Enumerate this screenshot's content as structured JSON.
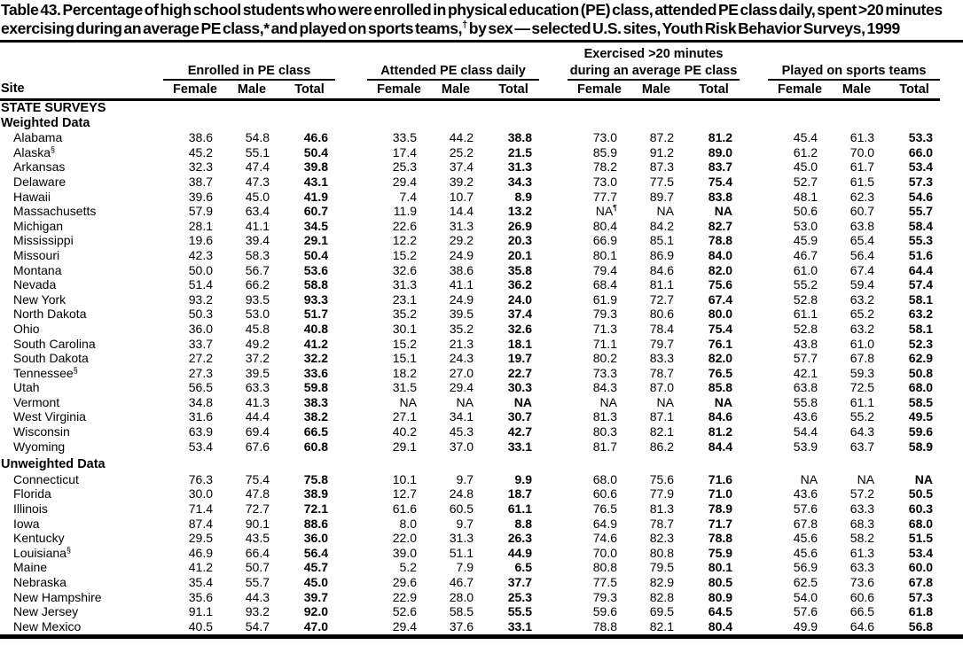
{
  "title_parts": [
    {
      "text": "Table 43. Percentage of high school students who were enrolled in physical education (PE) class, attended PE class daily, spent >20 minutes exercising during an average PE class,* and played on sports teams,"
    },
    {
      "sup": "†"
    },
    {
      "text": " by sex — selected U.S. sites, Youth Risk Behavior Surveys, 1999"
    }
  ],
  "table": {
    "site_header": "Site",
    "groups": [
      {
        "line1": "",
        "line2": "Enrolled in PE class"
      },
      {
        "line1": "",
        "line2": "Attended PE class daily"
      },
      {
        "line1": "Exercised >20 minutes",
        "line2": "during an average PE class"
      },
      {
        "line1": "",
        "line2": "Played on sports teams"
      }
    ],
    "sub_headers": [
      "Female",
      "Male",
      "Total"
    ],
    "sections": [
      {
        "label": "STATE SURVEYS",
        "gap": false,
        "rows": []
      },
      {
        "label": "Weighted Data",
        "gap": false,
        "rows": [
          {
            "site": "Alabama",
            "site_sup": "",
            "values": [
              "38.6",
              "54.8",
              "46.6",
              "33.5",
              "44.2",
              "38.8",
              "73.0",
              "87.2",
              "81.2",
              "45.4",
              "61.3",
              "53.3"
            ]
          },
          {
            "site": "Alaska",
            "site_sup": "§",
            "values": [
              "45.2",
              "55.1",
              "50.4",
              "17.4",
              "25.2",
              "21.5",
              "85.9",
              "91.2",
              "89.0",
              "61.2",
              "70.0",
              "66.0"
            ]
          },
          {
            "site": "Arkansas",
            "site_sup": "",
            "values": [
              "32.3",
              "47.4",
              "39.8",
              "25.3",
              "37.4",
              "31.3",
              "78.2",
              "87.3",
              "83.7",
              "45.0",
              "61.7",
              "53.4"
            ]
          },
          {
            "site": "Delaware",
            "site_sup": "",
            "values": [
              "38.7",
              "47.3",
              "43.1",
              "29.4",
              "39.2",
              "34.3",
              "73.0",
              "77.5",
              "75.4",
              "52.7",
              "61.5",
              "57.3"
            ]
          },
          {
            "site": "Hawaii",
            "site_sup": "",
            "values": [
              "39.6",
              "45.0",
              "41.9",
              "7.4",
              "10.7",
              "8.9",
              "77.7",
              "89.7",
              "83.8",
              "48.1",
              "62.3",
              "54.6"
            ]
          },
          {
            "site": "Massachusetts",
            "site_sup": "",
            "values": [
              "57.9",
              "63.4",
              "60.7",
              "11.9",
              "14.4",
              "13.2",
              "NA^¶",
              "NA",
              "NA",
              "50.6",
              "60.7",
              "55.7"
            ]
          },
          {
            "site": "Michigan",
            "site_sup": "",
            "values": [
              "28.1",
              "41.1",
              "34.5",
              "22.6",
              "31.3",
              "26.9",
              "80.4",
              "84.2",
              "82.7",
              "53.0",
              "63.8",
              "58.4"
            ]
          },
          {
            "site": "Mississippi",
            "site_sup": "",
            "values": [
              "19.6",
              "39.4",
              "29.1",
              "12.2",
              "29.2",
              "20.3",
              "66.9",
              "85.1",
              "78.8",
              "45.9",
              "65.4",
              "55.3"
            ]
          },
          {
            "site": "Missouri",
            "site_sup": "",
            "values": [
              "42.3",
              "58.3",
              "50.4",
              "15.2",
              "24.9",
              "20.1",
              "80.1",
              "86.9",
              "84.0",
              "46.7",
              "56.4",
              "51.6"
            ]
          },
          {
            "site": "Montana",
            "site_sup": "",
            "values": [
              "50.0",
              "56.7",
              "53.6",
              "32.6",
              "38.6",
              "35.8",
              "79.4",
              "84.6",
              "82.0",
              "61.0",
              "67.4",
              "64.4"
            ]
          },
          {
            "site": "Nevada",
            "site_sup": "",
            "values": [
              "51.4",
              "66.2",
              "58.8",
              "31.3",
              "41.1",
              "36.2",
              "68.4",
              "81.1",
              "75.6",
              "55.2",
              "59.4",
              "57.4"
            ]
          },
          {
            "site": "New York",
            "site_sup": "",
            "values": [
              "93.2",
              "93.5",
              "93.3",
              "23.1",
              "24.9",
              "24.0",
              "61.9",
              "72.7",
              "67.4",
              "52.8",
              "63.2",
              "58.1"
            ]
          },
          {
            "site": "North Dakota",
            "site_sup": "",
            "values": [
              "50.3",
              "53.0",
              "51.7",
              "35.2",
              "39.5",
              "37.4",
              "79.3",
              "80.6",
              "80.0",
              "61.1",
              "65.2",
              "63.2"
            ]
          },
          {
            "site": "Ohio",
            "site_sup": "",
            "values": [
              "36.0",
              "45.8",
              "40.8",
              "30.1",
              "35.2",
              "32.6",
              "71.3",
              "78.4",
              "75.4",
              "52.8",
              "63.2",
              "58.1"
            ]
          },
          {
            "site": "South Carolina",
            "site_sup": "",
            "values": [
              "33.7",
              "49.2",
              "41.2",
              "15.2",
              "21.3",
              "18.1",
              "71.1",
              "79.7",
              "76.1",
              "43.8",
              "61.0",
              "52.3"
            ]
          },
          {
            "site": "South Dakota",
            "site_sup": "",
            "values": [
              "27.2",
              "37.2",
              "32.2",
              "15.1",
              "24.3",
              "19.7",
              "80.2",
              "83.3",
              "82.0",
              "57.7",
              "67.8",
              "62.9"
            ]
          },
          {
            "site": "Tennessee",
            "site_sup": "§",
            "values": [
              "27.3",
              "39.5",
              "33.6",
              "18.2",
              "27.0",
              "22.7",
              "73.3",
              "78.7",
              "76.5",
              "42.1",
              "59.3",
              "50.8"
            ]
          },
          {
            "site": "Utah",
            "site_sup": "",
            "values": [
              "56.5",
              "63.3",
              "59.8",
              "31.5",
              "29.4",
              "30.3",
              "84.3",
              "87.0",
              "85.8",
              "63.8",
              "72.5",
              "68.0"
            ]
          },
          {
            "site": "Vermont",
            "site_sup": "",
            "values": [
              "34.8",
              "41.3",
              "38.3",
              "NA",
              "NA",
              "NA",
              "NA",
              "NA",
              "NA",
              "55.8",
              "61.1",
              "58.5"
            ]
          },
          {
            "site": "West Virginia",
            "site_sup": "",
            "values": [
              "31.6",
              "44.4",
              "38.2",
              "27.1",
              "34.1",
              "30.7",
              "81.3",
              "87.1",
              "84.6",
              "43.6",
              "55.2",
              "49.5"
            ]
          },
          {
            "site": "Wisconsin",
            "site_sup": "",
            "values": [
              "63.9",
              "69.4",
              "66.5",
              "40.2",
              "45.3",
              "42.7",
              "80.3",
              "82.1",
              "81.2",
              "54.4",
              "64.3",
              "59.6"
            ]
          },
          {
            "site": "Wyoming",
            "site_sup": "",
            "values": [
              "53.4",
              "67.6",
              "60.8",
              "29.1",
              "37.0",
              "33.1",
              "81.7",
              "86.2",
              "84.4",
              "53.9",
              "63.7",
              "58.9"
            ]
          }
        ]
      },
      {
        "label": "Unweighted Data",
        "gap": true,
        "rows": [
          {
            "site": "Connecticut",
            "site_sup": "",
            "values": [
              "76.3",
              "75.4",
              "75.8",
              "10.1",
              "9.7",
              "9.9",
              "68.0",
              "75.6",
              "71.6",
              "NA",
              "NA",
              "NA"
            ]
          },
          {
            "site": "Florida",
            "site_sup": "",
            "values": [
              "30.0",
              "47.8",
              "38.9",
              "12.7",
              "24.8",
              "18.7",
              "60.6",
              "77.9",
              "71.0",
              "43.6",
              "57.2",
              "50.5"
            ]
          },
          {
            "site": "Illinois",
            "site_sup": "",
            "values": [
              "71.4",
              "72.7",
              "72.1",
              "61.6",
              "60.5",
              "61.1",
              "76.5",
              "81.3",
              "78.9",
              "57.6",
              "63.3",
              "60.3"
            ]
          },
          {
            "site": "Iowa",
            "site_sup": "",
            "values": [
              "87.4",
              "90.1",
              "88.6",
              "8.0",
              "9.7",
              "8.8",
              "64.9",
              "78.7",
              "71.7",
              "67.8",
              "68.3",
              "68.0"
            ]
          },
          {
            "site": "Kentucky",
            "site_sup": "",
            "values": [
              "29.5",
              "43.5",
              "36.0",
              "22.0",
              "31.3",
              "26.3",
              "74.6",
              "82.3",
              "78.8",
              "45.6",
              "58.2",
              "51.5"
            ]
          },
          {
            "site": "Louisiana",
            "site_sup": "§",
            "values": [
              "46.9",
              "66.4",
              "56.4",
              "39.0",
              "51.1",
              "44.9",
              "70.0",
              "80.8",
              "75.9",
              "45.6",
              "61.3",
              "53.4"
            ]
          },
          {
            "site": "Maine",
            "site_sup": "",
            "values": [
              "41.2",
              "50.7",
              "45.7",
              "5.2",
              "7.9",
              "6.5",
              "80.8",
              "79.5",
              "80.1",
              "56.9",
              "63.3",
              "60.0"
            ]
          },
          {
            "site": "Nebraska",
            "site_sup": "",
            "values": [
              "35.4",
              "55.7",
              "45.0",
              "29.6",
              "46.7",
              "37.7",
              "77.5",
              "82.9",
              "80.5",
              "62.5",
              "73.6",
              "67.8"
            ]
          },
          {
            "site": "New Hampshire",
            "site_sup": "",
            "values": [
              "35.6",
              "44.3",
              "39.7",
              "22.9",
              "28.0",
              "25.3",
              "79.3",
              "82.8",
              "80.9",
              "54.0",
              "60.6",
              "57.3"
            ]
          },
          {
            "site": "New Jersey",
            "site_sup": "",
            "values": [
              "91.1",
              "93.2",
              "92.0",
              "52.6",
              "58.5",
              "55.5",
              "59.6",
              "69.5",
              "64.5",
              "57.6",
              "66.5",
              "61.8"
            ]
          },
          {
            "site": "New Mexico",
            "site_sup": "",
            "values": [
              "40.5",
              "54.7",
              "47.0",
              "29.4",
              "37.6",
              "33.1",
              "78.8",
              "82.1",
              "80.4",
              "49.9",
              "64.6",
              "56.8"
            ]
          }
        ]
      }
    ]
  }
}
